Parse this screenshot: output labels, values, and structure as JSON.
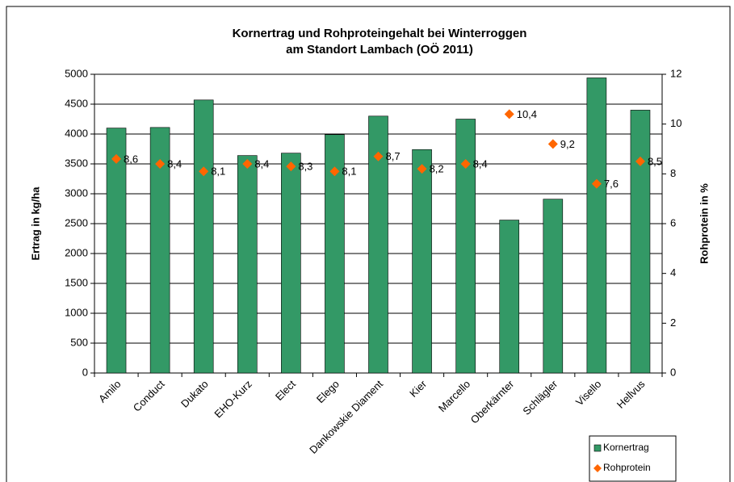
{
  "chart_data": {
    "type": "bar",
    "title": [
      "Kornertrag und Rohproteingehalt bei Winterroggen",
      "am Standort Lambach (OÖ 2011)"
    ],
    "ylabel": "Ertrag in kg/ha",
    "y2label": "Rohprotein in %",
    "categories": [
      "Amilo",
      "Conduct",
      "Dukato",
      "EHO-Kurz",
      "Elect",
      "Elego",
      "Dankowskie Diament",
      "Kier",
      "Marcello",
      "Oberkärnter",
      "Schlägler",
      "Visello",
      "Hellvus"
    ],
    "series": [
      {
        "name": "Kornertrag",
        "type": "bar",
        "color": "#339966",
        "values": [
          4100,
          4110,
          4570,
          3640,
          3680,
          3990,
          4300,
          3740,
          4250,
          2560,
          2910,
          4940,
          4400
        ]
      },
      {
        "name": "Rohprotein",
        "type": "scatter",
        "axis": "y2",
        "color": "#ff6600",
        "values": [
          8.6,
          8.4,
          8.1,
          8.4,
          8.3,
          8.1,
          8.7,
          8.2,
          8.4,
          10.4,
          9.2,
          7.6,
          8.5
        ],
        "value_labels": [
          "8,6",
          "8,4",
          "8,1",
          "8,4",
          "8,3",
          "8,1",
          "8,7",
          "8,2",
          "8,4",
          "10,4",
          "9,2",
          "7,6",
          "8,5"
        ]
      }
    ],
    "ylim": [
      0,
      5000
    ],
    "yticks": [
      0,
      500,
      1000,
      1500,
      2000,
      2500,
      3000,
      3500,
      4000,
      4500,
      5000
    ],
    "y2lim": [
      0,
      12
    ],
    "y2ticks": [
      0,
      2,
      4,
      6,
      8,
      10,
      12
    ],
    "grid": true,
    "legend": "bottom-right"
  }
}
